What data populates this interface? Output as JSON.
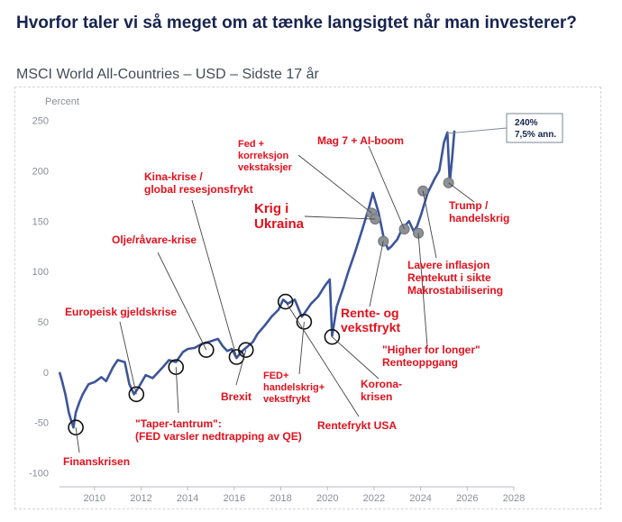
{
  "header": {
    "title": "Hvorfor taler vi så meget om at tænke langsigtet når man investerer?",
    "subtitle": "MSCI World All-Countries – USD – Sidste 17 år"
  },
  "chart_data": {
    "type": "line",
    "ylabel": "Percent",
    "xlim": [
      2008.5,
      2028
    ],
    "ylim": [
      -105,
      255
    ],
    "x_ticks": [
      2010,
      2012,
      2014,
      2016,
      2018,
      2020,
      2022,
      2024,
      2026,
      2028
    ],
    "y_ticks": [
      250,
      200,
      150,
      100,
      50,
      0,
      -50,
      -100
    ],
    "grid": false,
    "series": [
      {
        "color": "#3c5599",
        "x": [
          2008.5,
          2008.6,
          2008.75,
          2008.9,
          2009.0,
          2009.1,
          2009.2,
          2009.35,
          2009.5,
          2009.75,
          2010.0,
          2010.3,
          2010.5,
          2010.8,
          2011.0,
          2011.3,
          2011.5,
          2011.7,
          2011.9,
          2012.2,
          2012.5,
          2012.9,
          2013.2,
          2013.5,
          2013.8,
          2014.0,
          2014.3,
          2014.6,
          2014.9,
          2015.3,
          2015.5,
          2015.7,
          2015.9,
          2016.1,
          2016.3,
          2016.5,
          2016.8,
          2017.0,
          2017.3,
          2017.6,
          2017.9,
          2018.1,
          2018.3,
          2018.6,
          2018.9,
          2019.0,
          2019.3,
          2019.6,
          2019.9,
          2020.1,
          2020.2,
          2020.4,
          2020.7,
          2020.9,
          2021.2,
          2021.5,
          2021.8,
          2021.95,
          2022.2,
          2022.4,
          2022.6,
          2022.75,
          2023.0,
          2023.2,
          2023.5,
          2023.7,
          2023.85,
          2024.0,
          2024.3,
          2024.6,
          2024.8,
          2025.0,
          2025.15,
          2025.25,
          2025.35,
          2025.45
        ],
        "values": [
          0,
          -8,
          -22,
          -40,
          -48,
          -55,
          -40,
          -30,
          -22,
          -12,
          -10,
          -5,
          -9,
          5,
          12,
          10,
          -12,
          -22,
          -15,
          -3,
          -6,
          4,
          12,
          10,
          20,
          23,
          24,
          28,
          30,
          33,
          26,
          21,
          23,
          14,
          20,
          24,
          30,
          38,
          46,
          55,
          62,
          72,
          68,
          72,
          55,
          58,
          68,
          75,
          86,
          92,
          36,
          65,
          85,
          100,
          120,
          142,
          165,
          178,
          158,
          135,
          122,
          125,
          132,
          142,
          150,
          140,
          145,
          155,
          178,
          192,
          200,
          228,
          238,
          188,
          212,
          240
        ]
      }
    ],
    "badge": {
      "text1": "240%",
      "text2": "7,5% ann."
    },
    "annotations": [
      {
        "lines": [
          "Finanskrisen"
        ],
        "x": 2009.2,
        "y": -55
      },
      {
        "lines": [
          "Europeisk gjeldskrise"
        ],
        "x": 2011.8,
        "y": -22
      },
      {
        "lines": [
          "\"Taper-tantrum\":",
          "(FED varsler nedtrapping av QE)"
        ],
        "x": 2013.5,
        "y": 5
      },
      {
        "lines": [
          "Olje/råvare-krise"
        ],
        "x": 2014.8,
        "y": 22
      },
      {
        "lines": [
          "Kina-krise /",
          "global resesjonsfrykt"
        ],
        "x": 2016.1,
        "y": 15
      },
      {
        "lines": [
          "Brexit"
        ],
        "x": 2016.5,
        "y": 22
      },
      {
        "lines": [
          "FED+",
          "handelskrig+",
          "vekstfrykt"
        ],
        "x": 2019.0,
        "y": 50
      },
      {
        "lines": [
          "Rentefrykt USA"
        ],
        "x": 2018.2,
        "y": 70
      },
      {
        "lines": [
          "Korona-",
          "krisen"
        ],
        "x": 2020.2,
        "y": 35
      },
      {
        "lines": [
          "Rente- og",
          "vekstfrykt"
        ],
        "x": 2022.5,
        "y": 128
      },
      {
        "lines": [
          "Krig i",
          "Ukraina"
        ],
        "x": 2022.05,
        "y": 152
      },
      {
        "lines": [
          "Fed +",
          "korreksjon",
          "vekstaksjer"
        ],
        "x": 2021.9,
        "y": 158
      },
      {
        "lines": [
          "Mag 7 + AI-boom"
        ],
        "x": 2023.3,
        "y": 142
      },
      {
        "lines": [
          "\"Higher for longer\"",
          "Renteoppgang"
        ],
        "x": 2023.9,
        "y": 138
      },
      {
        "lines": [
          "Lavere inflasjon",
          "Rentekutt i sikte",
          "Makrostabilisering"
        ],
        "x": 2024.1,
        "y": 180
      },
      {
        "lines": [
          "Trump /",
          "handelskrig"
        ],
        "x": 2025.2,
        "y": 188
      }
    ]
  }
}
